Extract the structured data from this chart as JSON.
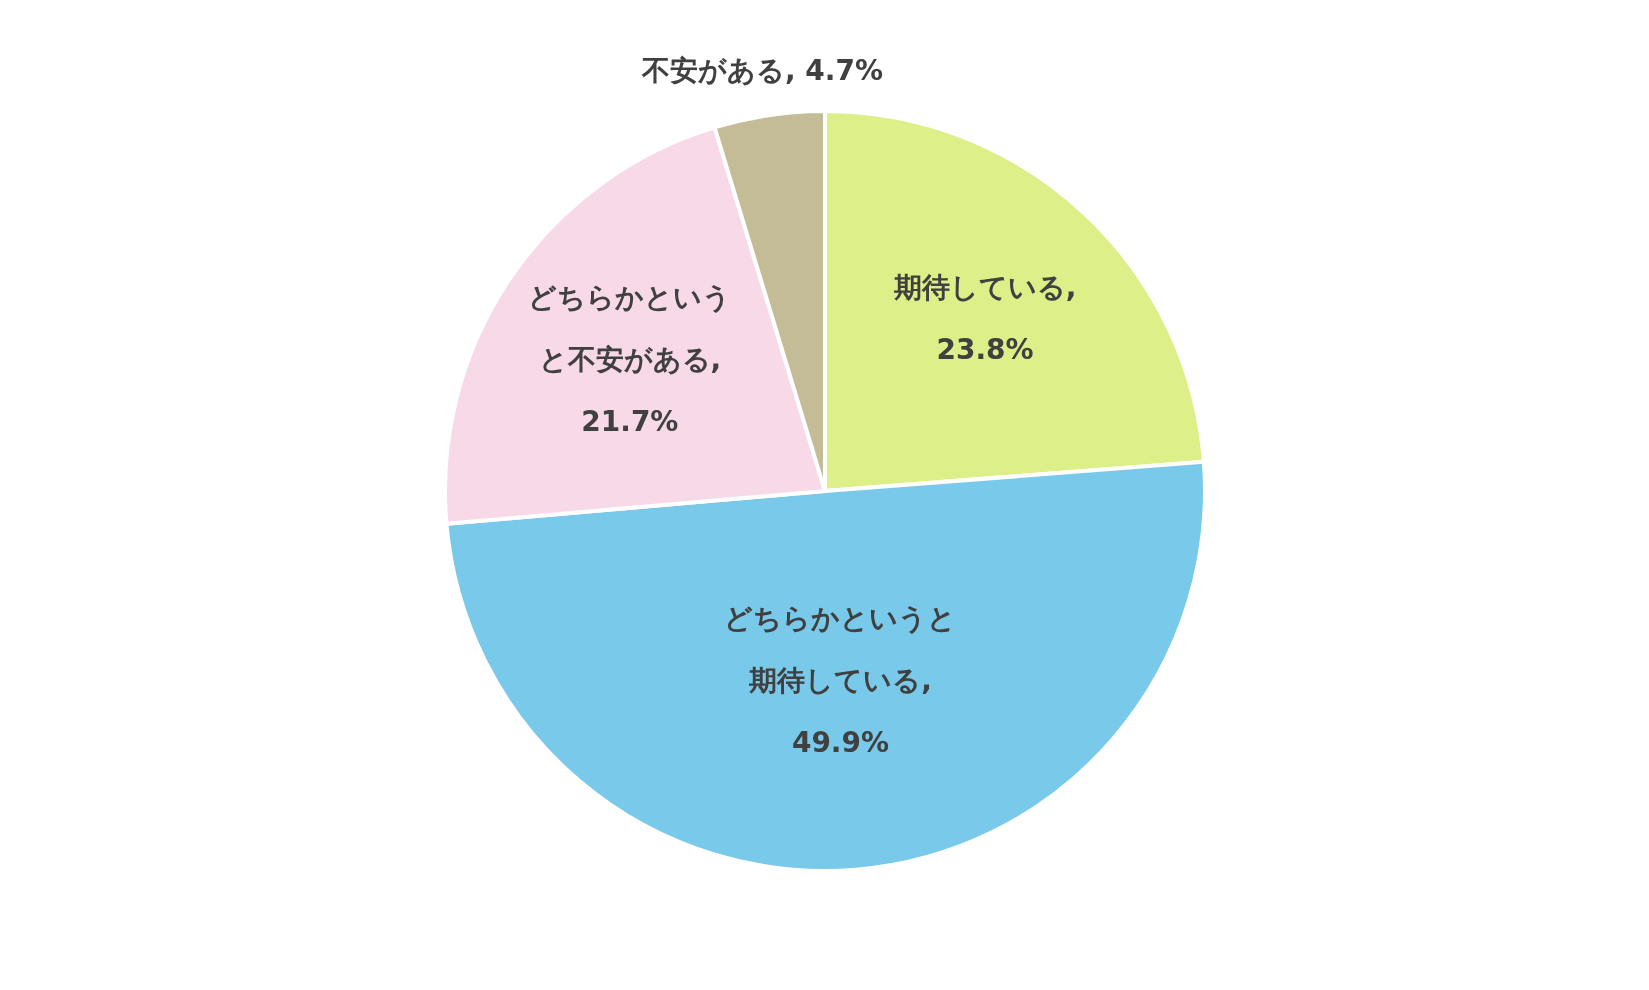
{
  "chart_data": {
    "type": "pie",
    "categories": [
      "期待している",
      "どちらかというと期待している",
      "どちらかというと不安がある",
      "不安がある"
    ],
    "values": [
      23.8,
      49.9,
      21.7,
      4.7
    ],
    "colors": [
      "#dcef88",
      "#79c9ea",
      "#f7d9e7",
      "#c4bc96"
    ],
    "value_labels": [
      ", 23.8%",
      ", 49.9%",
      ", 21.7%",
      ", 4.7%"
    ],
    "legend": false
  }
}
